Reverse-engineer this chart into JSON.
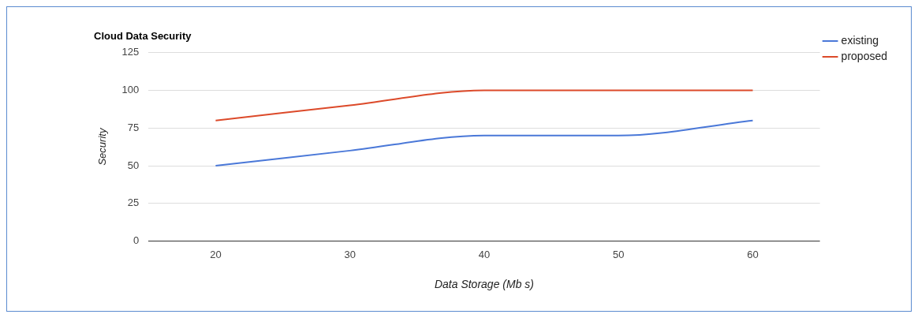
{
  "chart_data": {
    "type": "line",
    "title": "Cloud Data Security",
    "xlabel": "Data Storage (Mb s)",
    "ylabel": "Security",
    "categories": [
      "20",
      "30",
      "40",
      "50",
      "60"
    ],
    "series": [
      {
        "name": "existing",
        "color": "#4a78d8",
        "values": [
          50,
          60,
          70,
          70,
          80
        ]
      },
      {
        "name": "proposed",
        "color": "#dc4a2a",
        "values": [
          80,
          90,
          100,
          100,
          100
        ]
      }
    ],
    "ylim": [
      0,
      125
    ],
    "yticks": [
      0,
      25,
      50,
      75,
      100,
      125
    ],
    "grid": "y",
    "legend": "top right",
    "marker": "none",
    "line_style": "solid"
  }
}
